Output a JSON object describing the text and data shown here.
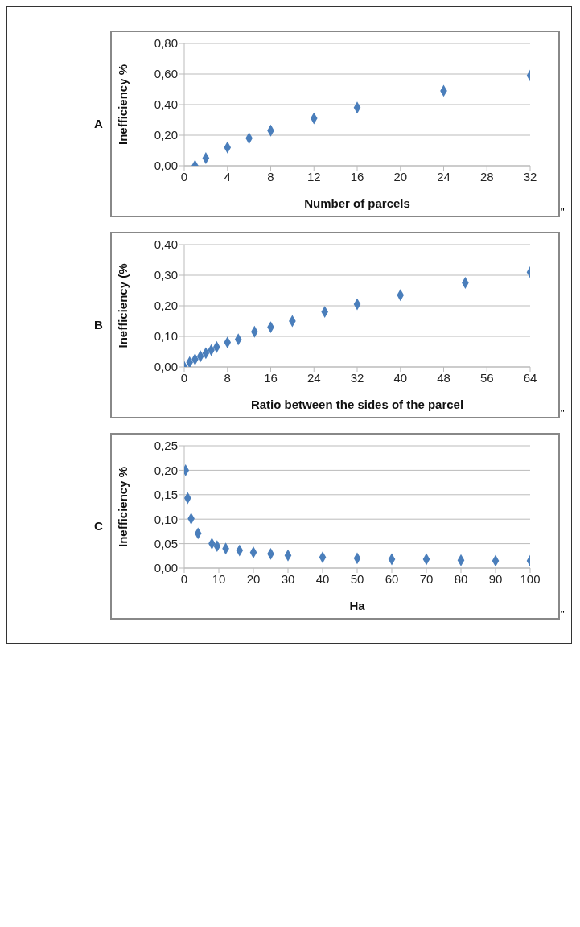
{
  "chart_data": [
    {
      "type": "scatter",
      "title": "A",
      "xlabel": "Number of parcels",
      "ylabel": "Inefficiency %",
      "marker": "diamond",
      "grid": "y",
      "annotations": [
        "\""
      ],
      "series": [
        {
          "color": "#4a7ebb",
          "x": [
            1,
            2,
            4,
            6,
            8,
            12,
            16,
            24,
            32
          ],
          "values": [
            0.0,
            0.05,
            0.12,
            0.18,
            0.23,
            0.31,
            0.38,
            0.49,
            0.59
          ]
        }
      ],
      "xlim": [
        0,
        32
      ],
      "xticks": [
        0,
        4,
        8,
        12,
        16,
        20,
        24,
        28,
        32
      ],
      "ylim": [
        0,
        0.8
      ],
      "yticks": [
        {
          "value": 0,
          "label": "0,00"
        },
        {
          "value": 0.2,
          "label": "0,20"
        },
        {
          "value": 0.4,
          "label": "0,40"
        },
        {
          "value": 0.6,
          "label": "0,60"
        },
        {
          "value": 0.8,
          "label": "0,80"
        }
      ]
    },
    {
      "type": "scatter",
      "title": "B",
      "xlabel": "Ratio between the sides of the parcel",
      "ylabel": "Inefficiency  (%",
      "marker": "diamond",
      "grid": "y",
      "annotations": [
        "\""
      ],
      "series": [
        {
          "color": "#4a7ebb",
          "x": [
            0,
            1,
            2,
            3,
            4,
            5,
            6,
            8,
            10,
            13,
            16,
            20,
            26,
            32,
            40,
            52,
            64
          ],
          "values": [
            0.0,
            0.015,
            0.025,
            0.035,
            0.045,
            0.055,
            0.065,
            0.08,
            0.09,
            0.115,
            0.13,
            0.15,
            0.18,
            0.205,
            0.235,
            0.275,
            0.31
          ]
        }
      ],
      "xlim": [
        0,
        64
      ],
      "xticks": [
        0,
        8,
        16,
        24,
        32,
        40,
        48,
        56,
        64
      ],
      "ylim": [
        0,
        0.4
      ],
      "yticks": [
        {
          "value": 0,
          "label": "0,00"
        },
        {
          "value": 0.1,
          "label": "0,10"
        },
        {
          "value": 0.2,
          "label": "0,20"
        },
        {
          "value": 0.3,
          "label": "0,30"
        },
        {
          "value": 0.4,
          "label": "0,40"
        }
      ]
    },
    {
      "type": "scatter",
      "title": "C",
      "xlabel": "Ha",
      "ylabel": "Inefficiency %",
      "marker": "diamond",
      "grid": "y",
      "annotations": [
        "\""
      ],
      "series": [
        {
          "color": "#4a7ebb",
          "x": [
            0.4,
            1,
            2,
            4,
            8,
            9.5,
            12,
            16,
            20,
            25,
            30,
            40,
            50,
            60,
            70,
            80,
            90,
            100
          ],
          "values": [
            0.2,
            0.143,
            0.101,
            0.071,
            0.05,
            0.045,
            0.04,
            0.036,
            0.032,
            0.029,
            0.026,
            0.022,
            0.02,
            0.018,
            0.018,
            0.016,
            0.015,
            0.015
          ]
        }
      ],
      "xlim": [
        0,
        100
      ],
      "xticks": [
        0,
        10,
        20,
        30,
        40,
        50,
        60,
        70,
        80,
        90,
        100
      ],
      "ylim": [
        0,
        0.25
      ],
      "yticks": [
        {
          "value": 0,
          "label": "0,00"
        },
        {
          "value": 0.05,
          "label": "0,05"
        },
        {
          "value": 0.1,
          "label": "0,10"
        },
        {
          "value": 0.15,
          "label": "0,15"
        },
        {
          "value": 0.2,
          "label": "0,20"
        },
        {
          "value": 0.25,
          "label": "0,25"
        }
      ]
    }
  ]
}
